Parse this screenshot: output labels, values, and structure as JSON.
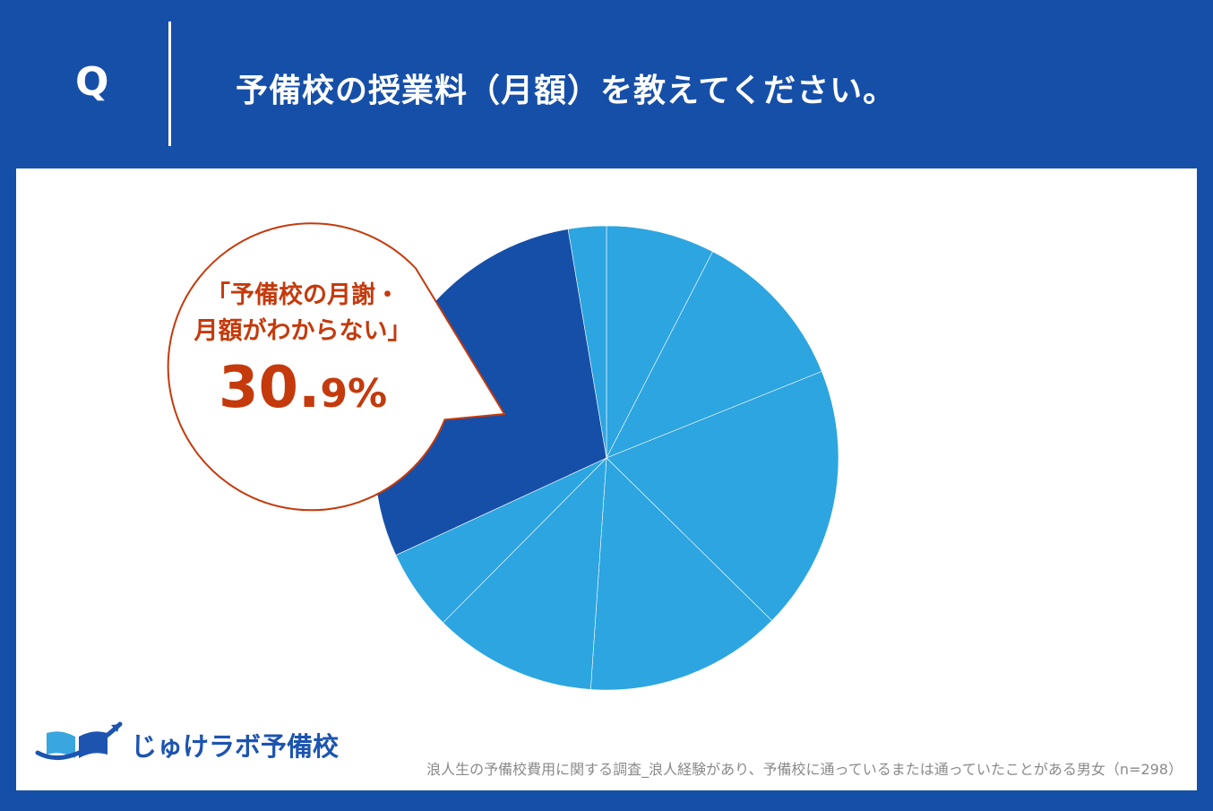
{
  "header": {
    "q_label": "Q",
    "question": "予備校の授業料（月額）を教えてください。"
  },
  "callout": {
    "line1": "「予備校の月謝・",
    "line2": "月額がわからない」",
    "percent_main": "30.",
    "percent_small": "9%"
  },
  "logo": {
    "text": "じゅけラボ予備校"
  },
  "footnote": "浪人生の予備校費用に関する調査_浪人経験があり、予備校に通っているまたは通っていたことがある男女（n=298）",
  "colors": {
    "header_bg": "#164fa8",
    "highlight_slice": "#164fa8",
    "other_slices": "#2ca5e0",
    "callout_text": "#c43a0c"
  },
  "chart_data": {
    "type": "pie",
    "title": "",
    "start": "12 o'clock",
    "direction": "clockwise",
    "categories": [
      "",
      "",
      "",
      "",
      "",
      "",
      "",
      ""
    ],
    "values": [
      8.0,
      12.0,
      19.5,
      14.5,
      12.0,
      6.0,
      30.9,
      2.8
    ],
    "highlight": {
      "index": 6,
      "label": "予備校の月謝・月額がわからない",
      "value": 30.9
    }
  }
}
